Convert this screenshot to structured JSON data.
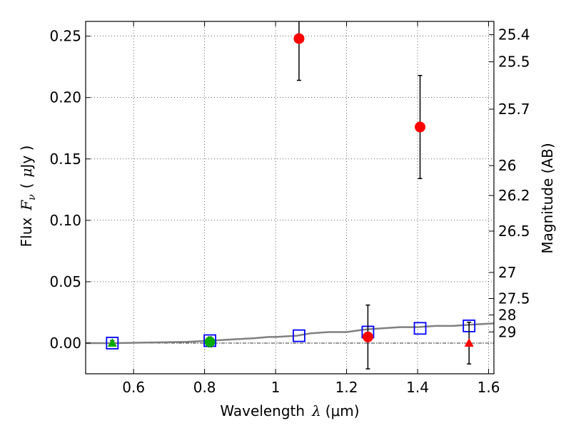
{
  "chart_data": {
    "type": "scatter",
    "xlabel_text": "Wavelength",
    "xlabel_symbol": "λ",
    "xlabel_unit": "(μm)",
    "ylabel_text": "Flux",
    "ylabel_symbol": "F",
    "ylabel_subscript": "ν",
    "ylabel_unit_open": "(",
    "ylabel_unit_mu": "μ",
    "ylabel_unit_rest": "Jy )",
    "y2label": "Magnitude (AB)",
    "xlim": [
      0.465,
      1.615
    ],
    "ylim": [
      -0.025,
      0.262
    ],
    "grid": true,
    "xticks": [
      {
        "value": 0.6,
        "label": "0.6"
      },
      {
        "value": 0.8,
        "label": "0.8"
      },
      {
        "value": 1.0,
        "label": "1"
      },
      {
        "value": 1.2,
        "label": "1.2"
      },
      {
        "value": 1.4,
        "label": "1.4"
      },
      {
        "value": 1.6,
        "label": "1.6"
      }
    ],
    "yticks": [
      {
        "value": 0.0,
        "label": "0.00"
      },
      {
        "value": 0.05,
        "label": "0.05"
      },
      {
        "value": 0.1,
        "label": "0.10"
      },
      {
        "value": 0.15,
        "label": "0.15"
      },
      {
        "value": 0.2,
        "label": "0.20"
      },
      {
        "value": 0.25,
        "label": "0.25"
      }
    ],
    "y2ticks": [
      {
        "mag": 25.4,
        "label": "25.4"
      },
      {
        "mag": 25.5,
        "label": "25.5"
      },
      {
        "mag": 25.7,
        "label": "25.7"
      },
      {
        "mag": 26.0,
        "label": "26"
      },
      {
        "mag": 26.2,
        "label": "26.2"
      },
      {
        "mag": 26.5,
        "label": "26.5"
      },
      {
        "mag": 27.0,
        "label": "27"
      },
      {
        "mag": 27.5,
        "label": "27.5"
      },
      {
        "mag": 28.0,
        "label": "28"
      },
      {
        "mag": 29.0,
        "label": "29"
      }
    ],
    "series": [
      {
        "name": "detections",
        "marker": "circle",
        "color": "#ff0000",
        "points": [
          {
            "x": 1.066,
            "y": 0.248,
            "err": 0.034
          },
          {
            "x": 1.407,
            "y": 0.176,
            "err": 0.042
          },
          {
            "x": 1.26,
            "y": 0.005,
            "err": 0.026
          }
        ]
      },
      {
        "name": "optical",
        "marker": "circle",
        "color": "#00aa00",
        "points": [
          {
            "x": 0.815,
            "y": 0.001,
            "err": 0.004
          }
        ]
      },
      {
        "name": "optical-limit",
        "marker": "triangle",
        "color": "#00aa00",
        "points": [
          {
            "x": 0.54,
            "y": 0.0,
            "err": 0.002
          }
        ]
      },
      {
        "name": "ir-limit",
        "marker": "triangle",
        "color": "#ff0000",
        "points": [
          {
            "x": 1.545,
            "y": 0.0,
            "err": 0.017
          }
        ]
      },
      {
        "name": "model-photometry",
        "marker": "square",
        "color": "#0000ff",
        "points": [
          {
            "x": 0.54,
            "y": 0.0
          },
          {
            "x": 0.815,
            "y": 0.002
          },
          {
            "x": 1.066,
            "y": 0.006
          },
          {
            "x": 1.26,
            "y": 0.009
          },
          {
            "x": 1.407,
            "y": 0.012
          },
          {
            "x": 1.545,
            "y": 0.014
          }
        ]
      },
      {
        "name": "model-sed",
        "type": "line",
        "color": "#808080",
        "x": [
          0.465,
          0.55,
          0.65,
          0.75,
          0.82,
          0.88,
          0.94,
          0.98,
          1.0,
          1.06,
          1.1,
          1.15,
          1.2,
          1.25,
          1.3,
          1.35,
          1.4,
          1.45,
          1.5,
          1.55,
          1.615
        ],
        "y": [
          0.0,
          0.0,
          0.0005,
          0.001,
          0.002,
          0.003,
          0.004,
          0.005,
          0.005,
          0.006,
          0.008,
          0.009,
          0.009,
          0.011,
          0.012,
          0.013,
          0.013,
          0.014,
          0.014,
          0.015,
          0.016
        ]
      }
    ],
    "reference_line": {
      "y": 0.0,
      "style": "dash-dot",
      "color": "#000000"
    }
  }
}
